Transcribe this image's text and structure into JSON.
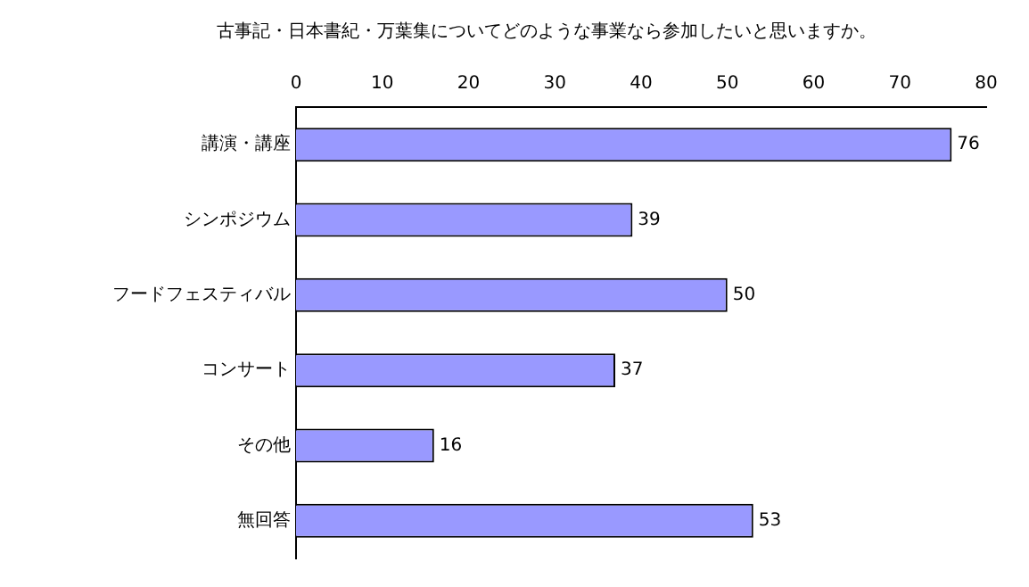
{
  "chart_data": {
    "type": "bar",
    "orientation": "horizontal",
    "title": "古事記・日本書紀・万葉集についてどのような事業なら参加したいと思いますか。",
    "categories": [
      "講演・講座",
      "シンポジウム",
      "フードフェスティバル",
      "コンサート",
      "その他",
      "無回答"
    ],
    "values": [
      76,
      39,
      50,
      37,
      16,
      53
    ],
    "color": "#9999ff",
    "xlim": [
      0,
      80
    ],
    "xticks": [
      0,
      10,
      20,
      30,
      40,
      50,
      60,
      70,
      80
    ],
    "grid": false,
    "legend": false,
    "data_labels": true
  }
}
